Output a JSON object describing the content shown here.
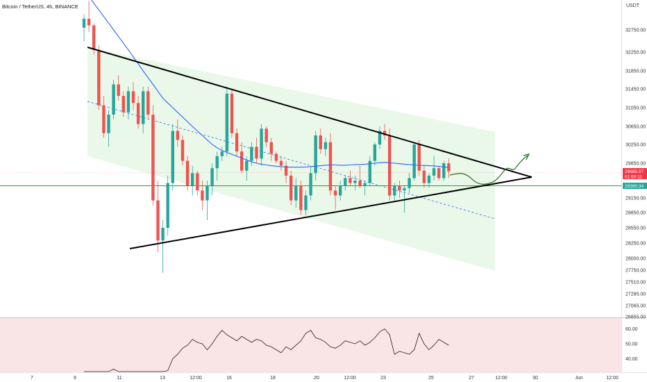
{
  "header": {
    "title": "Bitcoin / TetherUS, 4h, BINANCE"
  },
  "chart_data": {
    "type": "candlestick",
    "title": "Bitcoin / TetherUS, 4h, BINANCE",
    "unit_label": "USDT",
    "price_axis": {
      "ticks": [
        {
          "label": "32750.00",
          "value": 32750
        },
        {
          "label": "32250.00",
          "value": 32250
        },
        {
          "label": "31850.00",
          "value": 31850
        },
        {
          "label": "31450.00",
          "value": 31450
        },
        {
          "label": "31050.00",
          "value": 31050
        },
        {
          "label": "30650.00",
          "value": 30650
        },
        {
          "label": "30250.00",
          "value": 30250
        },
        {
          "label": "29850.00",
          "value": 29850
        },
        {
          "label": "29150.00",
          "value": 29150
        },
        {
          "label": "28850.00",
          "value": 28850
        },
        {
          "label": "28550.00",
          "value": 28550
        },
        {
          "label": "28250.00",
          "value": 28250
        },
        {
          "label": "28000.00",
          "value": 28000
        },
        {
          "label": "27750.00",
          "value": 27750
        },
        {
          "label": "27510.00",
          "value": 27510
        },
        {
          "label": "27285.00",
          "value": 27285
        },
        {
          "label": "27065.00",
          "value": 27065
        },
        {
          "label": "26855.00",
          "value": 26855
        }
      ]
    },
    "time_axis": {
      "ticks": [
        "7",
        "9",
        "11",
        "13",
        "12:00",
        "16",
        "18",
        "20",
        "12:00",
        "23",
        "25",
        "27",
        "12:00",
        "30",
        "Jun",
        "12:00"
      ]
    },
    "price_badges": {
      "last": {
        "value": 29685.07,
        "label": "29685.07",
        "countdown": "01:50:11",
        "color": "#f23645"
      },
      "level": {
        "value": 29390.34,
        "label": "29390.34",
        "color": "#26a69a"
      }
    },
    "candles": [
      [
        32800,
        33100,
        32500,
        33000
      ],
      [
        33000,
        33400,
        32700,
        32850
      ],
      [
        32850,
        32900,
        32200,
        32300
      ],
      [
        32300,
        32400,
        31000,
        31100
      ],
      [
        31100,
        31300,
        30400,
        30500
      ],
      [
        30500,
        31000,
        30200,
        30900
      ],
      [
        30900,
        31650,
        30800,
        31550
      ],
      [
        31550,
        31750,
        31200,
        31300
      ],
      [
        31300,
        31400,
        30850,
        30950
      ],
      [
        30950,
        31500,
        30800,
        31400
      ],
      [
        31400,
        31600,
        31000,
        31150
      ],
      [
        31150,
        31300,
        30600,
        30700
      ],
      [
        30700,
        31500,
        30500,
        31400
      ],
      [
        31400,
        31500,
        30800,
        30900
      ],
      [
        30900,
        31100,
        29000,
        29100
      ],
      [
        29100,
        29500,
        28100,
        28300
      ],
      [
        28300,
        28700,
        27700,
        28550
      ],
      [
        28550,
        29600,
        28400,
        29450
      ],
      [
        29450,
        30700,
        29300,
        30550
      ],
      [
        30550,
        30800,
        30200,
        30350
      ],
      [
        30350,
        30450,
        29800,
        29900
      ],
      [
        29900,
        30000,
        29300,
        29400
      ],
      [
        29400,
        29800,
        29200,
        29650
      ],
      [
        29650,
        29700,
        29200,
        29300
      ],
      [
        29300,
        29500,
        28900,
        29100
      ],
      [
        29100,
        29500,
        28700,
        29400
      ],
      [
        29400,
        29850,
        29200,
        29750
      ],
      [
        29750,
        30100,
        29500,
        30000
      ],
      [
        30000,
        30200,
        29900,
        30100
      ],
      [
        30100,
        31500,
        30000,
        31350
      ],
      [
        31350,
        31450,
        30400,
        30500
      ],
      [
        30500,
        30600,
        30000,
        30100
      ],
      [
        30100,
        30300,
        29650,
        29700
      ],
      [
        29700,
        30000,
        29500,
        29900
      ],
      [
        29900,
        30300,
        29800,
        30200
      ],
      [
        30200,
        30400,
        29850,
        29950
      ],
      [
        29950,
        30700,
        29800,
        30600
      ],
      [
        30600,
        30650,
        30200,
        30300
      ],
      [
        30300,
        30400,
        29900,
        30050
      ],
      [
        30050,
        30100,
        29850,
        29900
      ],
      [
        29900,
        30000,
        29700,
        29800
      ],
      [
        29800,
        29900,
        29450,
        29600
      ],
      [
        29600,
        29700,
        29000,
        29100
      ],
      [
        29100,
        29550,
        28950,
        29400
      ],
      [
        29400,
        29500,
        28800,
        28900
      ],
      [
        28900,
        29300,
        28800,
        29200
      ],
      [
        29200,
        29800,
        29100,
        29650
      ],
      [
        29650,
        30550,
        29500,
        30450
      ],
      [
        30450,
        30600,
        30050,
        30150
      ],
      [
        30150,
        30400,
        30000,
        30300
      ],
      [
        30300,
        30500,
        29200,
        29300
      ],
      [
        29300,
        29400,
        28900,
        29200
      ],
      [
        29200,
        29500,
        29100,
        29400
      ],
      [
        29400,
        29600,
        29300,
        29550
      ],
      [
        29550,
        29700,
        29400,
        29450
      ],
      [
        29450,
        29600,
        29300,
        29500
      ],
      [
        29500,
        29800,
        29350,
        29400
      ],
      [
        29400,
        29500,
        29200,
        29450
      ],
      [
        29450,
        30000,
        29400,
        29900
      ],
      [
        29900,
        30300,
        29800,
        30250
      ],
      [
        30250,
        30650,
        30150,
        30550
      ],
      [
        30550,
        30700,
        30350,
        30450
      ],
      [
        30450,
        30600,
        29100,
        29200
      ],
      [
        29200,
        29450,
        29100,
        29400
      ],
      [
        29400,
        29500,
        29150,
        29300
      ],
      [
        29300,
        29400,
        28850,
        29350
      ],
      [
        29350,
        29650,
        29250,
        29550
      ],
      [
        29550,
        30300,
        29500,
        30250
      ],
      [
        30250,
        30350,
        29600,
        29700
      ],
      [
        29700,
        29800,
        29350,
        29450
      ],
      [
        29450,
        29650,
        29350,
        29600
      ],
      [
        29600,
        30000,
        29500,
        29750
      ],
      [
        29750,
        29800,
        29500,
        29550
      ],
      [
        29550,
        29900,
        29500,
        29850
      ],
      [
        29850,
        29950,
        29550,
        29685
      ]
    ],
    "ma": [
      33700,
      33500,
      33350,
      33200,
      33050,
      32900,
      32750,
      32600,
      32450,
      32300,
      32150,
      32000,
      31850,
      31700,
      31550,
      31400,
      31250,
      31150,
      31050,
      30950,
      30850,
      30750,
      30650,
      30550,
      30450,
      30350,
      30250,
      30180,
      30120,
      30080,
      30040,
      30000,
      29960,
      29920,
      29880,
      29850,
      29830,
      29815,
      29800,
      29790,
      29780,
      29775,
      29770,
      29770,
      29770,
      29775,
      29780,
      29790,
      29800,
      29810,
      29815,
      29815,
      29810,
      29810,
      29815,
      29820,
      29825,
      29830,
      29840,
      29850,
      29860,
      29870,
      29860,
      29850,
      29840,
      29830,
      29820,
      29815,
      29810,
      29805,
      29800,
      29795,
      29785,
      29775,
      29770
    ],
    "rsi": {
      "ticks": [
        {
          "label": "60.00",
          "value": 60
        },
        {
          "label": "50.00",
          "value": 50
        },
        {
          "label": "40.00",
          "value": 40
        }
      ],
      "values": [
        30,
        29,
        28,
        27,
        26,
        28,
        33,
        31,
        29,
        31,
        30,
        28,
        31,
        29,
        26,
        24,
        27,
        32,
        40,
        43,
        47,
        49,
        53,
        51,
        50,
        46,
        50,
        55,
        59,
        56,
        54,
        52,
        55,
        53,
        51,
        53,
        52,
        49,
        48,
        46,
        44,
        48,
        46,
        49,
        52,
        57,
        59,
        54,
        53,
        51,
        48,
        47,
        49,
        52,
        51,
        50,
        52,
        49,
        51,
        54,
        58,
        60,
        56,
        43,
        45,
        44,
        43,
        46,
        57,
        50,
        46,
        49,
        53,
        51,
        49
      ]
    }
  }
}
